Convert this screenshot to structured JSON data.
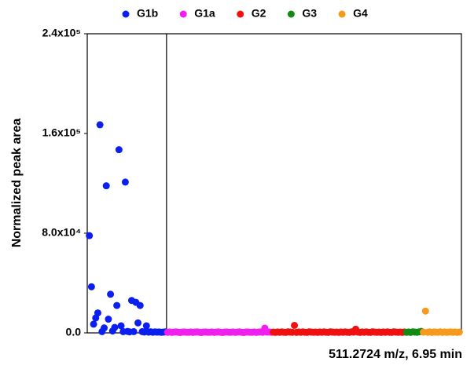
{
  "chart_data": {
    "type": "scatter",
    "xlabel": "511.2724 m/z, 6.95 min",
    "ylabel": "Normalized peak area",
    "xlim": [
      0,
      177
    ],
    "ylim": [
      0,
      240000
    ],
    "yticks": [
      {
        "value": 0,
        "label": "0.0"
      },
      {
        "value": 80000,
        "label": "8.0x10⁴"
      },
      {
        "value": 160000,
        "label": "1.6x10⁵"
      },
      {
        "value": 240000,
        "label": "2.4x10⁵"
      }
    ],
    "legend": "top",
    "series": [
      {
        "name": "G1b",
        "color": "#0a1ff0",
        "x": [
          1,
          2,
          3,
          4,
          5,
          6,
          7,
          8,
          9,
          10,
          11,
          12,
          13,
          14,
          15,
          16,
          17,
          18,
          19,
          20,
          21,
          22,
          23,
          24,
          25,
          26,
          27,
          28,
          29,
          30,
          31,
          32,
          33,
          34,
          35,
          36,
          37
        ],
        "values": [
          78000,
          37000,
          7000,
          12000,
          16000,
          167000,
          1000,
          4000,
          118000,
          11000,
          31000,
          1500,
          4400,
          22000,
          147000,
          5700,
          1000,
          121000,
          1200,
          800,
          26000,
          1000,
          24500,
          8000,
          22000,
          1000,
          700,
          5700,
          600,
          900,
          500,
          800,
          600,
          700,
          500,
          600,
          800
        ]
      },
      {
        "name": "G1a",
        "color": "#f01ff0",
        "x": [
          38,
          39,
          40,
          41,
          42,
          43,
          44,
          45,
          46,
          47,
          48,
          49,
          50,
          51,
          52,
          53,
          54,
          55,
          56,
          57,
          58,
          59,
          60,
          61,
          62,
          63,
          64,
          65,
          66,
          67,
          68,
          69,
          70,
          71,
          72,
          73,
          74,
          75,
          76,
          77,
          78,
          79,
          80,
          81,
          82,
          83,
          84,
          85,
          86,
          87
        ],
        "values": [
          500,
          700,
          400,
          600,
          800,
          500,
          300,
          600,
          700,
          500,
          500,
          700,
          400,
          600,
          800,
          500,
          300,
          600,
          700,
          500,
          500,
          700,
          400,
          600,
          800,
          500,
          300,
          600,
          700,
          500,
          500,
          700,
          400,
          600,
          800,
          500,
          300,
          600,
          700,
          500,
          500,
          700,
          400,
          600,
          800,
          500,
          3800,
          600,
          700,
          500
        ]
      },
      {
        "name": "G2",
        "color": "#f01010",
        "x": [
          88,
          89,
          90,
          91,
          92,
          93,
          94,
          95,
          96,
          97,
          98,
          99,
          100,
          101,
          102,
          103,
          104,
          105,
          106,
          107,
          108,
          109,
          110,
          111,
          112,
          113,
          114,
          115,
          116,
          117,
          118,
          119,
          120,
          121,
          122,
          123,
          124,
          125,
          126,
          127,
          128,
          129,
          130,
          131,
          132,
          133,
          134,
          135,
          136,
          137,
          138,
          139,
          140,
          141,
          142,
          143,
          144,
          145,
          146,
          147,
          148,
          149,
          150
        ],
        "values": [
          600,
          400,
          700,
          500,
          800,
          500,
          400,
          900,
          600,
          500,
          6000,
          400,
          700,
          500,
          800,
          500,
          400,
          900,
          600,
          500,
          600,
          400,
          700,
          500,
          800,
          500,
          400,
          900,
          600,
          500,
          600,
          400,
          700,
          500,
          800,
          500,
          400,
          900,
          600,
          3000,
          600,
          400,
          700,
          500,
          800,
          500,
          400,
          900,
          600,
          500,
          600,
          400,
          700,
          500,
          800,
          500,
          400,
          900,
          600,
          500,
          600,
          400,
          700
        ]
      },
      {
        "name": "G3",
        "color": "#138a13",
        "x": [
          151,
          152,
          153,
          154,
          155,
          156,
          157,
          158
        ],
        "values": [
          500,
          700,
          400,
          900,
          600,
          500,
          800,
          1200
        ]
      },
      {
        "name": "G4",
        "color": "#f59a1c",
        "x": [
          159,
          160,
          161,
          162,
          163,
          164,
          165,
          166,
          167,
          168,
          169,
          170,
          171,
          172,
          173,
          174,
          175,
          176
        ],
        "values": [
          600,
          17500,
          500,
          800,
          400,
          700,
          600,
          500,
          900,
          400,
          700,
          500,
          600,
          800,
          500,
          700,
          400,
          600
        ]
      }
    ]
  }
}
